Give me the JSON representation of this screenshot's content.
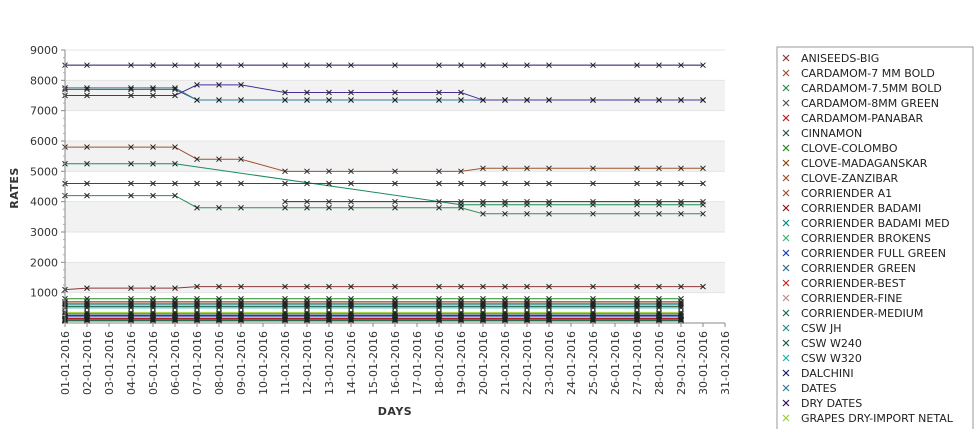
{
  "chart_data": {
    "type": "line",
    "xlabel": "DAYS",
    "ylabel": "RATES",
    "ylim": [
      0,
      9000
    ],
    "yticks": [
      1000,
      2000,
      3000,
      4000,
      5000,
      6000,
      7000,
      8000,
      9000
    ],
    "grid": "alternating horizontal bands",
    "legend_position": "right",
    "categories": [
      "01-01-2016",
      "02-01-2016",
      "03-01-2016",
      "04-01-2016",
      "05-01-2016",
      "06-01-2016",
      "07-01-2016",
      "08-01-2016",
      "09-01-2016",
      "10-01-2016",
      "11-01-2016",
      "12-01-2016",
      "13-01-2016",
      "14-01-2016",
      "15-01-2016",
      "16-01-2016",
      "17-01-2016",
      "18-01-2016",
      "19-01-2016",
      "20-01-2016",
      "21-01-2016",
      "22-01-2016",
      "23-01-2016",
      "24-01-2016",
      "25-01-2016",
      "26-01-2016",
      "27-01-2016",
      "28-01-2016",
      "29-01-2016",
      "30-01-2016",
      "31-01-2016"
    ],
    "series": [
      {
        "name": "ANISEEDS-BIG",
        "color": "#8b3a3a",
        "values": [
          1100,
          1150,
          null,
          1150,
          1150,
          1150,
          1200,
          1200,
          1200,
          null,
          1200,
          1200,
          1200,
          1200,
          null,
          1200,
          null,
          1200,
          1200,
          1200,
          1200,
          1200,
          1200,
          null,
          1200,
          null,
          1200,
          1200,
          1200,
          1200,
          null
        ]
      },
      {
        "name": "CARDAMOM-7 MM BOLD",
        "color": "#a0522d",
        "values": [
          5800,
          5800,
          null,
          5800,
          5800,
          5800,
          5400,
          5400,
          5400,
          null,
          5000,
          5000,
          5000,
          5000,
          null,
          5000,
          null,
          5000,
          5000,
          5100,
          5100,
          5100,
          5100,
          null,
          5100,
          null,
          5100,
          5100,
          5100,
          5100,
          null
        ]
      },
      {
        "name": "CARDAMOM-7.5MM BOLD",
        "color": "#2e8b57",
        "values": [
          4200,
          4200,
          null,
          4200,
          4200,
          4200,
          3800,
          3800,
          3800,
          null,
          3800,
          3800,
          3800,
          3800,
          null,
          3800,
          null,
          3800,
          3800,
          3600,
          3600,
          3600,
          3600,
          null,
          3600,
          null,
          3600,
          3600,
          3600,
          3600,
          null
        ]
      },
      {
        "name": "CARDAMOM-8MM GREEN",
        "color": "#555555",
        "values": [
          7700,
          7700,
          null,
          7700,
          7700,
          7700,
          7350,
          7350,
          7350,
          null,
          7350,
          7350,
          7350,
          7350,
          null,
          7350,
          null,
          7350,
          7350,
          7350,
          7350,
          7350,
          7350,
          null,
          7350,
          null,
          7350,
          7350,
          7350,
          7350,
          null
        ]
      },
      {
        "name": "CARDAMOM-PANABAR",
        "color": "#b22222",
        "values": [
          150,
          150,
          null,
          150,
          150,
          150,
          150,
          150,
          150,
          null,
          150,
          150,
          150,
          150,
          null,
          150,
          null,
          150,
          150,
          150,
          150,
          150,
          150,
          null,
          150,
          null,
          150,
          150,
          150,
          null,
          null
        ]
      },
      {
        "name": "CINNAMON",
        "color": "#2f4f4f",
        "values": [
          300,
          300,
          null,
          300,
          300,
          300,
          300,
          300,
          300,
          null,
          300,
          300,
          300,
          300,
          null,
          300,
          null,
          300,
          300,
          300,
          300,
          300,
          300,
          null,
          300,
          null,
          300,
          300,
          300,
          null,
          null
        ]
      },
      {
        "name": "CLOVE-COLOMBO",
        "color": "#228b22",
        "values": [
          800,
          800,
          null,
          800,
          800,
          800,
          800,
          800,
          800,
          null,
          800,
          800,
          800,
          800,
          null,
          800,
          null,
          800,
          800,
          800,
          800,
          800,
          800,
          null,
          800,
          null,
          800,
          800,
          800,
          null,
          null
        ]
      },
      {
        "name": "CLOVE-MADAGANSKAR",
        "color": "#8b4513",
        "values": [
          700,
          700,
          null,
          700,
          700,
          700,
          700,
          700,
          700,
          null,
          700,
          700,
          700,
          700,
          null,
          700,
          null,
          700,
          700,
          700,
          700,
          700,
          700,
          null,
          700,
          null,
          700,
          700,
          700,
          null,
          null
        ]
      },
      {
        "name": "CLOVE-ZANZIBAR",
        "color": "#a0522d",
        "values": [
          650,
          650,
          null,
          650,
          650,
          650,
          650,
          650,
          650,
          null,
          650,
          650,
          650,
          650,
          null,
          650,
          null,
          650,
          650,
          650,
          650,
          650,
          650,
          null,
          650,
          null,
          650,
          650,
          650,
          null,
          null
        ]
      },
      {
        "name": "CORRIENDER A1",
        "color": "#a0522d",
        "values": [
          100,
          100,
          null,
          100,
          100,
          100,
          100,
          100,
          100,
          null,
          100,
          100,
          100,
          100,
          null,
          100,
          null,
          100,
          100,
          100,
          100,
          100,
          100,
          null,
          100,
          null,
          100,
          100,
          100,
          null,
          null
        ]
      },
      {
        "name": "CORRIENDER BADAMI",
        "color": "#8b1a1a",
        "values": [
          80,
          80,
          null,
          80,
          80,
          80,
          80,
          80,
          80,
          null,
          80,
          80,
          80,
          80,
          null,
          80,
          null,
          80,
          80,
          80,
          80,
          80,
          80,
          null,
          80,
          null,
          80,
          80,
          80,
          null,
          null
        ]
      },
      {
        "name": "CORRIENDER BADAMI MED",
        "color": "#008b8b",
        "values": [
          90,
          90,
          null,
          90,
          90,
          90,
          90,
          90,
          90,
          null,
          90,
          90,
          90,
          90,
          null,
          90,
          null,
          90,
          90,
          90,
          90,
          90,
          90,
          null,
          90,
          null,
          90,
          90,
          90,
          null,
          null
        ]
      },
      {
        "name": "CORRIENDER BROKENS",
        "color": "#3cb371",
        "values": [
          60,
          60,
          null,
          60,
          60,
          60,
          60,
          60,
          60,
          null,
          60,
          60,
          60,
          60,
          null,
          60,
          null,
          60,
          60,
          60,
          60,
          60,
          60,
          null,
          60,
          null,
          60,
          60,
          60,
          null,
          null
        ]
      },
      {
        "name": "CORRIENDER FULL GREEN",
        "color": "#1e3cb4",
        "values": [
          200,
          200,
          null,
          200,
          200,
          200,
          200,
          200,
          200,
          null,
          200,
          200,
          200,
          200,
          null,
          200,
          null,
          200,
          200,
          200,
          200,
          200,
          200,
          null,
          200,
          null,
          200,
          200,
          200,
          null,
          null
        ]
      },
      {
        "name": "CORRIENDER GREEN",
        "color": "#2f6f8f",
        "values": [
          110,
          110,
          null,
          110,
          110,
          110,
          110,
          110,
          110,
          null,
          110,
          110,
          110,
          110,
          null,
          110,
          null,
          110,
          110,
          110,
          110,
          110,
          110,
          null,
          110,
          null,
          110,
          110,
          110,
          null,
          null
        ]
      },
      {
        "name": "CORRIENDER-BEST",
        "color": "#cd2626",
        "values": [
          120,
          120,
          null,
          120,
          120,
          120,
          120,
          120,
          120,
          null,
          120,
          120,
          120,
          120,
          null,
          120,
          null,
          120,
          120,
          120,
          120,
          120,
          120,
          null,
          120,
          null,
          120,
          120,
          120,
          null,
          null
        ]
      },
      {
        "name": "CORRIENDER-FINE",
        "color": "#bc8f8f",
        "values": [
          95,
          95,
          null,
          95,
          95,
          95,
          95,
          95,
          95,
          null,
          95,
          95,
          95,
          95,
          null,
          95,
          null,
          95,
          95,
          95,
          95,
          95,
          95,
          null,
          95,
          null,
          95,
          95,
          95,
          null,
          null
        ]
      },
      {
        "name": "CORRIENDER-MEDIUM",
        "color": "#1e6b4a",
        "values": [
          85,
          85,
          null,
          85,
          85,
          85,
          85,
          85,
          85,
          null,
          85,
          85,
          85,
          85,
          null,
          85,
          null,
          85,
          85,
          85,
          85,
          85,
          85,
          null,
          85,
          null,
          85,
          85,
          85,
          null,
          null
        ]
      },
      {
        "name": "CSW JH",
        "color": "#2e8b8b",
        "values": [
          600,
          600,
          null,
          600,
          600,
          600,
          600,
          600,
          600,
          null,
          600,
          600,
          600,
          600,
          null,
          600,
          null,
          600,
          600,
          600,
          600,
          600,
          600,
          null,
          600,
          null,
          600,
          600,
          600,
          null,
          null
        ]
      },
      {
        "name": "CSW W240",
        "color": "#1a5c4a",
        "values": [
          550,
          550,
          null,
          550,
          550,
          550,
          550,
          550,
          550,
          null,
          550,
          550,
          550,
          550,
          null,
          550,
          null,
          550,
          550,
          550,
          550,
          550,
          550,
          null,
          550,
          null,
          550,
          550,
          550,
          null,
          null
        ]
      },
      {
        "name": "CSW W320",
        "color": "#20b2aa",
        "values": [
          500,
          500,
          null,
          500,
          500,
          500,
          500,
          500,
          500,
          null,
          500,
          500,
          500,
          500,
          null,
          500,
          null,
          500,
          500,
          500,
          500,
          500,
          500,
          null,
          500,
          null,
          500,
          500,
          500,
          null,
          null
        ]
      },
      {
        "name": "DALCHINI",
        "color": "#191970",
        "values": [
          250,
          250,
          null,
          250,
          250,
          250,
          250,
          250,
          250,
          null,
          250,
          250,
          250,
          250,
          null,
          250,
          null,
          250,
          250,
          250,
          250,
          250,
          250,
          null,
          250,
          null,
          250,
          250,
          250,
          null,
          null
        ]
      },
      {
        "name": "DATES",
        "color": "#2f7f9f",
        "values": [
          7750,
          7750,
          null,
          7750,
          7750,
          7750,
          7350,
          7350,
          7350,
          null,
          7350,
          7350,
          7350,
          7350,
          null,
          7350,
          null,
          7350,
          7350,
          7350,
          7350,
          7350,
          7350,
          null,
          7350,
          null,
          7350,
          7350,
          7350,
          7350,
          null
        ]
      },
      {
        "name": "DRY DATES",
        "color": "#2c0f5c",
        "values": [
          8500,
          8500,
          null,
          8500,
          8500,
          8500,
          8500,
          8500,
          8500,
          null,
          8500,
          8500,
          8500,
          8500,
          null,
          8500,
          null,
          8500,
          8500,
          8500,
          8500,
          8500,
          8500,
          null,
          8500,
          null,
          8500,
          8500,
          8500,
          8500,
          null
        ]
      },
      {
        "name": "GRAPES DRY-IMPORT NETAL",
        "color": "#9acd32",
        "values": [
          350,
          350,
          null,
          350,
          350,
          350,
          350,
          350,
          350,
          null,
          350,
          350,
          350,
          350,
          null,
          350,
          null,
          350,
          350,
          350,
          350,
          350,
          350,
          null,
          350,
          null,
          350,
          350,
          350,
          null,
          null
        ]
      },
      {
        "name": "",
        "color": "#4b2c9b",
        "values": [
          7500,
          7500,
          null,
          7500,
          7500,
          7500,
          7850,
          7850,
          7850,
          null,
          7600,
          7600,
          7600,
          7600,
          null,
          7600,
          null,
          7600,
          7600,
          7350,
          7350,
          7350,
          7350,
          null,
          7350,
          null,
          7350,
          7350,
          7350,
          7350,
          null
        ]
      },
      {
        "name": "",
        "color": "#1e8b5a",
        "values": [
          5250,
          5250,
          null,
          5250,
          5250,
          5250,
          null,
          null,
          null,
          null,
          null,
          null,
          null,
          null,
          null,
          null,
          null,
          null,
          3900,
          3900,
          3900,
          3900,
          3900,
          null,
          3900,
          null,
          3900,
          3900,
          3900,
          3900,
          null
        ]
      },
      {
        "name": "",
        "color": "#2f4f4f",
        "values": [
          4600,
          4600,
          null,
          4600,
          4600,
          4600,
          4600,
          4600,
          4600,
          null,
          4600,
          4600,
          4600,
          4600,
          null,
          4600,
          null,
          4600,
          4600,
          4600,
          4600,
          4600,
          4600,
          null,
          4600,
          null,
          4600,
          4600,
          4600,
          4600,
          null
        ]
      },
      {
        "name": "",
        "color": "#333333",
        "values": [
          null,
          null,
          null,
          null,
          null,
          null,
          null,
          null,
          null,
          null,
          4000,
          4000,
          4000,
          4000,
          null,
          4000,
          null,
          4000,
          4000,
          4000,
          4000,
          4000,
          4000,
          null,
          4000,
          null,
          4000,
          4000,
          4000,
          4000,
          null
        ]
      }
    ]
  }
}
